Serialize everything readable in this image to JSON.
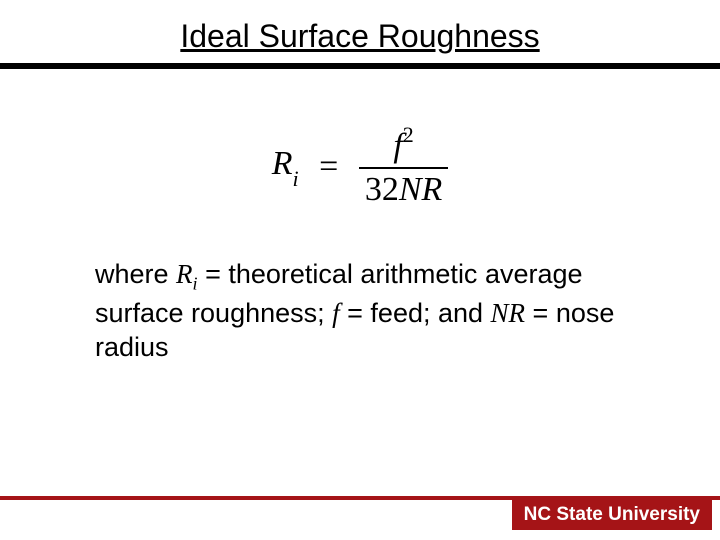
{
  "slide": {
    "title": "Ideal Surface Roughness",
    "equation": {
      "lhs_symbol": "R",
      "lhs_subscript": "i",
      "equals": "=",
      "numerator_symbol": "f",
      "numerator_superscript": "2",
      "denominator_coeff": "32",
      "denominator_symbols": "NR"
    },
    "explanation": {
      "where": "where ",
      "r": "R",
      "i": "i",
      "eq1": " = theoretical arithmetic average surface roughness; ",
      "f": "f",
      "eq2": " = feed; and ",
      "nr": "NR",
      "eq3": " = nose radius"
    },
    "footer": "NC State University",
    "colors": {
      "accent": "#a51417",
      "text": "#000000",
      "background": "#ffffff"
    }
  }
}
